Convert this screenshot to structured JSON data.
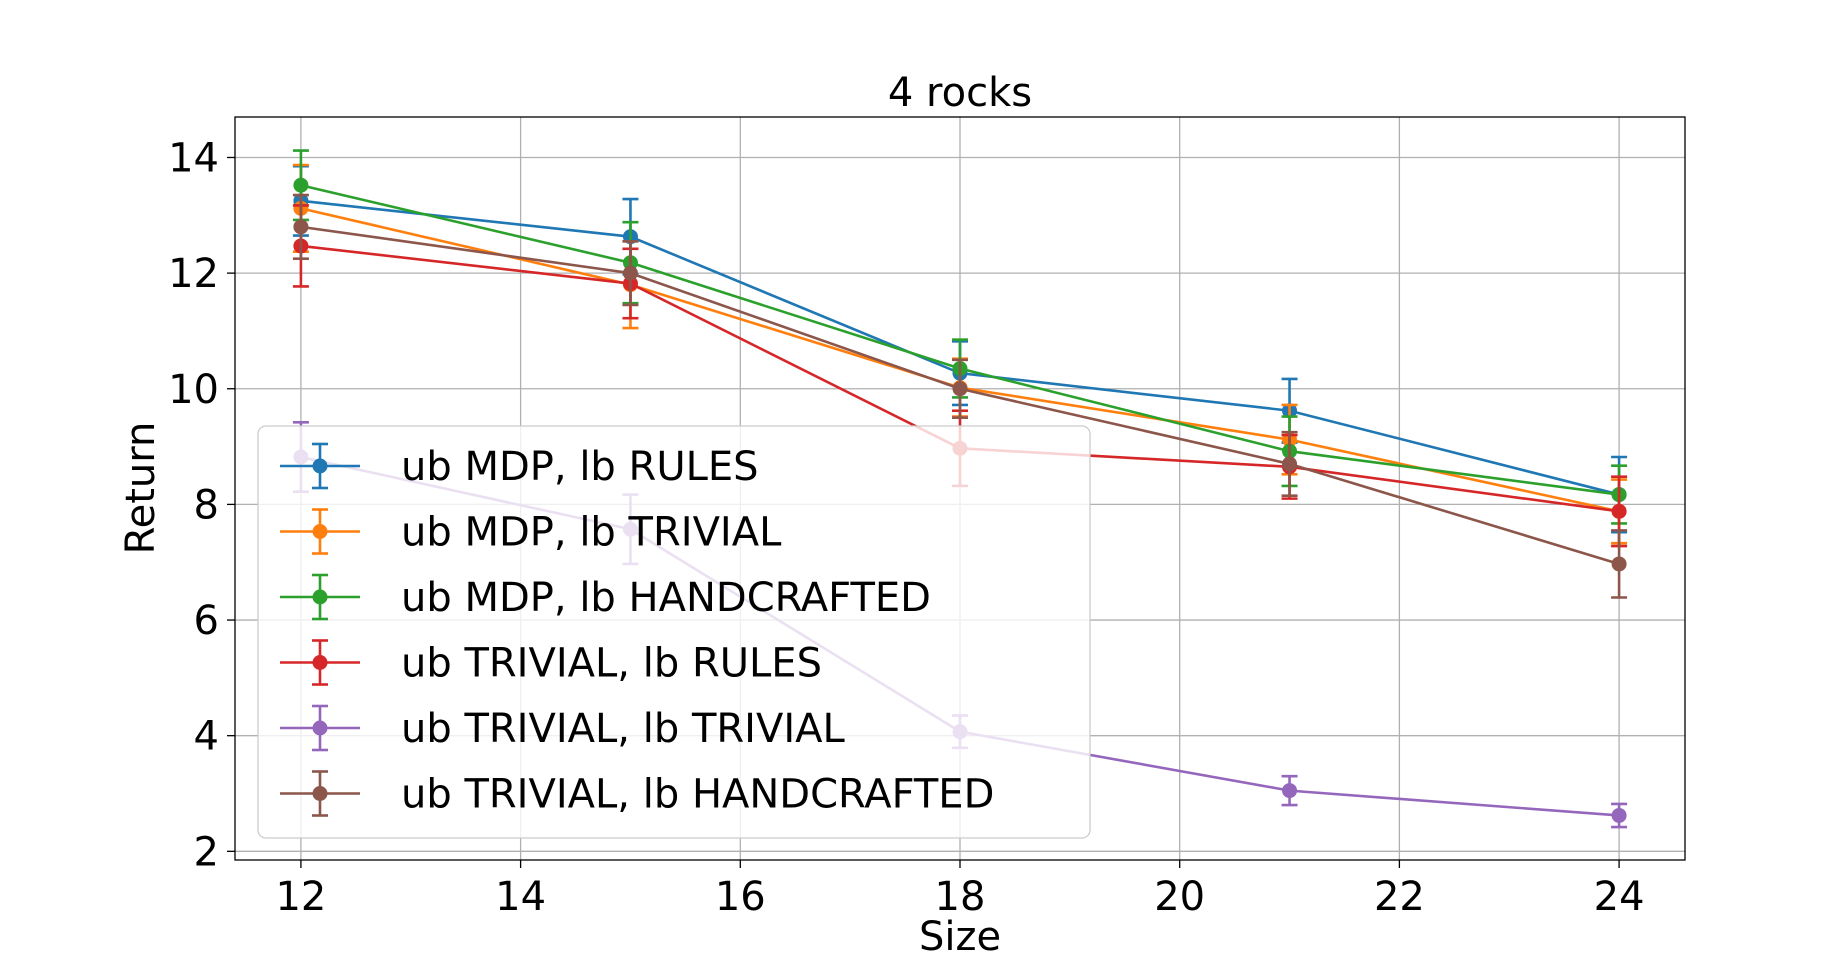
{
  "chart_data": {
    "type": "line",
    "title": "4 rocks",
    "xlabel": "Size",
    "ylabel": "Return",
    "xlim": [
      11.4,
      24.6
    ],
    "ylim": [
      1.85,
      14.7
    ],
    "xticks": [
      12,
      14,
      16,
      18,
      20,
      22,
      24
    ],
    "yticks": [
      2,
      4,
      6,
      8,
      10,
      12,
      14
    ],
    "grid": true,
    "legend_position": "lower-left",
    "x": [
      12,
      15,
      18,
      21,
      24
    ],
    "series": [
      {
        "name": "ub MDP, lb RULES",
        "color": "#1f77b4",
        "values": [
          13.25,
          12.63,
          10.27,
          9.62,
          8.17
        ],
        "errors": [
          0.6,
          0.65,
          0.55,
          0.55,
          0.65
        ]
      },
      {
        "name": "ub MDP, lb TRIVIAL",
        "color": "#ff7f0e",
        "values": [
          13.12,
          11.8,
          10.02,
          9.12,
          7.88
        ],
        "errors": [
          0.75,
          0.75,
          0.5,
          0.6,
          0.55
        ]
      },
      {
        "name": "ub MDP, lb HANDCRAFTED",
        "color": "#2ca02c",
        "values": [
          13.52,
          12.18,
          10.35,
          8.92,
          8.17
        ],
        "errors": [
          0.6,
          0.7,
          0.5,
          0.6,
          0.5
        ]
      },
      {
        "name": "ub TRIVIAL, lb RULES",
        "color": "#d62728",
        "values": [
          12.47,
          11.82,
          8.97,
          8.65,
          7.88
        ],
        "errors": [
          0.7,
          0.6,
          0.65,
          0.55,
          0.6
        ]
      },
      {
        "name": "ub TRIVIAL, lb TRIVIAL",
        "color": "#9467bd",
        "values": [
          8.82,
          7.57,
          4.07,
          3.05,
          2.62
        ],
        "errors": [
          0.6,
          0.6,
          0.28,
          0.25,
          0.2
        ]
      },
      {
        "name": "ub TRIVIAL, lb HANDCRAFTED",
        "color": "#8c564b",
        "values": [
          12.8,
          12.0,
          10.0,
          8.7,
          6.97
        ],
        "errors": [
          0.55,
          0.55,
          0.5,
          0.55,
          0.58
        ]
      }
    ]
  }
}
